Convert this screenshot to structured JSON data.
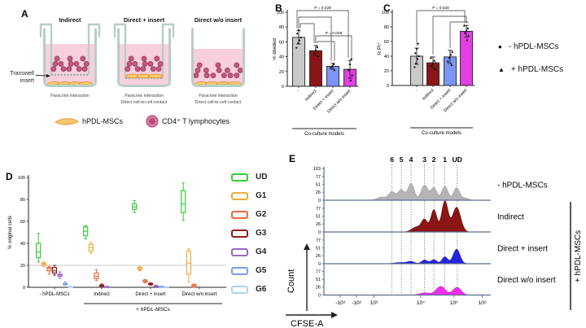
{
  "panels": {
    "a": "A",
    "b": "B",
    "c": "C",
    "d": "D",
    "e": "E"
  },
  "panelA": {
    "label": "A",
    "transwell_note": [
      "Transwell",
      "insert"
    ],
    "wells": [
      {
        "title": "Indirect",
        "captions": [
          "Paracrine interaction"
        ],
        "has_insert": true,
        "msc_location": "well-bottom"
      },
      {
        "title": "Direct + insert",
        "captions": [
          "Paracrine interaction",
          "Direct cell-to-cell contact"
        ],
        "has_insert": true,
        "msc_location": "insert-membrane"
      },
      {
        "title": "Direct w/o insert",
        "captions": [
          "Paracrine interaction",
          "Direct cell-to-cell contact"
        ],
        "has_insert": false,
        "msc_location": "well-bottom"
      }
    ],
    "legend": [
      {
        "icon": "msc-cell",
        "label": "hPDL-MSCs"
      },
      {
        "icon": "t-cell",
        "label": "CD4⁺ T lymphocytes"
      }
    ],
    "colors": {
      "vessel": "#b7cec6",
      "membrane": "#98b3a9",
      "medium": "#f9cfdc",
      "tcell": "#c2597f",
      "tcell_stroke": "#9c3f64",
      "msc": "#f7c76d",
      "msc_stroke": "#e0963c"
    }
  },
  "panelC_legend": [
    {
      "marker": "●",
      "label": "- hPDL-MSCs"
    },
    {
      "marker": "▲",
      "label": "+ hPDL-MSCs"
    }
  ],
  "chart_data": [
    {
      "id": "B",
      "type": "bar",
      "panel_label": "B",
      "title": "",
      "ylabel": "% divided",
      "xlabel": "Co-culture models",
      "ylim": [
        0,
        100
      ],
      "yticks": [
        0,
        20,
        40,
        60,
        80,
        100
      ],
      "categories": [
        "-",
        "Indirect",
        "Direct + insert",
        "Direct w/o insert"
      ],
      "values": [
        66,
        48,
        27,
        23
      ],
      "errors": [
        9,
        7,
        4,
        12
      ],
      "points": [
        [
          52,
          58,
          62,
          66,
          71,
          76
        ],
        [
          41,
          45,
          49,
          53
        ],
        [
          22,
          25,
          27,
          30
        ],
        [
          8,
          15,
          22,
          30,
          37
        ]
      ],
      "bar_colors": [
        "#c9c9c9",
        "#8b1518",
        "#7d95f5",
        "#e33fe3"
      ],
      "markers": [
        "circle",
        "triangle",
        "triangle",
        "triangle"
      ],
      "significance": [
        {
          "from": 0,
          "to": 3,
          "label": "P = 0.028"
        },
        {
          "from": 0,
          "to": 2
        },
        {
          "from": 0,
          "to": 1
        },
        {
          "from": 1,
          "to": 3,
          "label": "P = 0.028"
        },
        {
          "from": 1,
          "to": 2
        }
      ]
    },
    {
      "id": "C",
      "type": "bar",
      "panel_label": "C",
      "title": "",
      "ylabel": "% PI⁺",
      "xlabel": "Co-culture models",
      "ylim": [
        0,
        100
      ],
      "yticks": [
        0,
        20,
        40,
        60,
        80,
        100
      ],
      "categories": [
        "-",
        "Indirect",
        "Direct + insert",
        "Direct w/o insert"
      ],
      "values": [
        40,
        31,
        39,
        74
      ],
      "errors": [
        11,
        8,
        9,
        8
      ],
      "points": [
        [
          25,
          30,
          36,
          40,
          44,
          50,
          57
        ],
        [
          22,
          27,
          30,
          34,
          38
        ],
        [
          28,
          33,
          38,
          42,
          46
        ],
        [
          62,
          68,
          72,
          75,
          78,
          82
        ]
      ],
      "bar_colors": [
        "#c9c9c9",
        "#8b1518",
        "#7d95f5",
        "#e33fe3"
      ],
      "markers": [
        "circle",
        "triangle",
        "triangle",
        "triangle"
      ],
      "significance": [
        {
          "from": 0,
          "to": 3,
          "label": "P = 0.028"
        },
        {
          "from": 1,
          "to": 3
        },
        {
          "from": 2,
          "to": 3
        }
      ]
    },
    {
      "id": "D",
      "type": "box",
      "panel_label": "D",
      "ylabel": "% original cells",
      "ylim": [
        0,
        100
      ],
      "yticks": [
        0,
        20,
        40,
        60,
        80,
        100
      ],
      "reference_line": 20,
      "groups": [
        "- hPDL-MSCs",
        "Indirect",
        "Direct + insert",
        "Direct w/o insert"
      ],
      "group_annotation": {
        "label": "+ hPDL-MSCs",
        "applies_to": [
          "Indirect",
          "Direct + insert",
          "Direct w/o insert"
        ]
      },
      "series": [
        {
          "name": "UD",
          "color": "#33cc33",
          "boxes": [
            [
              23,
              27,
              32,
              40,
              49
            ],
            [
              44,
              47,
              51,
              55,
              56
            ],
            [
              68,
              71,
              73,
              76,
              79
            ],
            [
              61,
              68,
              76,
              88,
              95
            ]
          ]
        },
        {
          "name": "G1",
          "color": "#f2a93b",
          "boxes": [
            [
              19,
              20,
              21,
              22,
              23
            ],
            [
              31,
              33,
              36,
              39,
              41
            ],
            [
              15,
              16,
              17,
              18,
              19
            ],
            [
              5,
              12,
              22,
              33,
              35
            ]
          ]
        },
        {
          "name": "G2",
          "color": "#e8693c",
          "boxes": [
            [
              12,
              15,
              17,
              18,
              19
            ],
            [
              6,
              8,
              10,
              13,
              16
            ],
            [
              4,
              5,
              5.5,
              6.5,
              7
            ],
            [
              0,
              0.5,
              1.5,
              2.5,
              3
            ]
          ]
        },
        {
          "name": "G3",
          "color": "#8b1a1a",
          "boxes": [
            [
              11,
              13,
              15,
              18,
              20
            ],
            [
              0,
              1,
              1.5,
              2,
              3
            ],
            [
              2,
              2.5,
              3,
              3.5,
              4
            ],
            null
          ]
        },
        {
          "name": "G4",
          "color": "#9966cc",
          "boxes": [
            [
              8,
              10,
              11,
              12,
              14
            ],
            [
              0,
              0,
              0.3,
              0.6,
              1
            ],
            [
              0.5,
              0.8,
              1,
              1.5,
              2
            ],
            null
          ]
        },
        {
          "name": "G5",
          "color": "#7b9ce8",
          "boxes": [
            [
              2,
              2.5,
              3,
              3.5,
              5
            ],
            null,
            [
              0,
              0.2,
              0.5,
              0.8,
              1
            ],
            null
          ]
        },
        {
          "name": "G6",
          "color": "#aed0f0",
          "boxes": [
            [
              0,
              0.2,
              0.5,
              0.8,
              1
            ],
            null,
            [
              0,
              0,
              0.2,
              0.3,
              0.5
            ],
            null
          ]
        }
      ]
    },
    {
      "id": "E",
      "type": "histogram-stack",
      "panel_label": "E",
      "xlabel": "CFSE-A",
      "ylabel": "Count",
      "ymax": 103,
      "generation_labels": [
        "6",
        "5",
        "4",
        "3",
        "2",
        "1",
        "UD"
      ],
      "generation_x": [
        0.408,
        0.464,
        0.522,
        0.603,
        0.659,
        0.725,
        0.799
      ],
      "xticks": [
        {
          "label": "-10³",
          "x": 0.098
        },
        {
          "label": "-10²",
          "x": 0.195
        },
        {
          "label": "10³",
          "x": 0.3
        },
        {
          "label": "10⁴",
          "x": 0.58
        },
        {
          "label": "10⁵",
          "x": 0.78
        },
        {
          "label": "10⁶",
          "x": 0.95
        }
      ],
      "group_annotation": "+ hPDL-MSCs",
      "rows": [
        {
          "label": "- hPDL-MSCs",
          "color": "#b5b5b5",
          "stroke": "#979797",
          "yticks": [
            0,
            26,
            51,
            77,
            103
          ],
          "peaks": [
            {
              "x": 0.345,
              "h": 10,
              "w": 0.025
            },
            {
              "x": 0.408,
              "h": 27,
              "w": 0.02
            },
            {
              "x": 0.464,
              "h": 34,
              "w": 0.019
            },
            {
              "x": 0.522,
              "h": 54,
              "w": 0.019
            },
            {
              "x": 0.603,
              "h": 49,
              "w": 0.02
            },
            {
              "x": 0.659,
              "h": 41,
              "w": 0.018
            },
            {
              "x": 0.725,
              "h": 45,
              "w": 0.018
            },
            {
              "x": 0.795,
              "h": 40,
              "w": 0.018
            },
            {
              "x": 0.845,
              "h": 7,
              "w": 0.02
            }
          ]
        },
        {
          "label": "Indirect",
          "color": "#8b1416",
          "stroke": "#6d0f11",
          "yticks": [
            0,
            26,
            51,
            77
          ],
          "peaks": [
            {
              "x": 0.555,
              "h": 16,
              "w": 0.028
            },
            {
              "x": 0.603,
              "h": 38,
              "w": 0.018
            },
            {
              "x": 0.659,
              "h": 72,
              "w": 0.018
            },
            {
              "x": 0.725,
              "h": 100,
              "w": 0.019
            },
            {
              "x": 0.795,
              "h": 80,
              "w": 0.024
            }
          ]
        },
        {
          "label": "Direct + insert",
          "color": "#2424de",
          "stroke": "#1717b0",
          "yticks": [
            0,
            26,
            51,
            77
          ],
          "peaks": [
            {
              "x": 0.46,
              "h": 4,
              "w": 0.035
            },
            {
              "x": 0.522,
              "h": 7,
              "w": 0.02
            },
            {
              "x": 0.603,
              "h": 12,
              "w": 0.017
            },
            {
              "x": 0.659,
              "h": 13,
              "w": 0.017
            },
            {
              "x": 0.725,
              "h": 22,
              "w": 0.017
            },
            {
              "x": 0.795,
              "h": 47,
              "w": 0.02
            }
          ]
        },
        {
          "label": "Direct w/o insert",
          "color": "#f02df0",
          "stroke": "#c414c4",
          "yticks": [
            0,
            26,
            51,
            77
          ],
          "peaks": [
            {
              "x": 0.605,
              "h": 7,
              "w": 0.03
            },
            {
              "x": 0.7,
              "h": 28,
              "w": 0.027
            },
            {
              "x": 0.798,
              "h": 25,
              "w": 0.024
            }
          ]
        }
      ]
    }
  ]
}
